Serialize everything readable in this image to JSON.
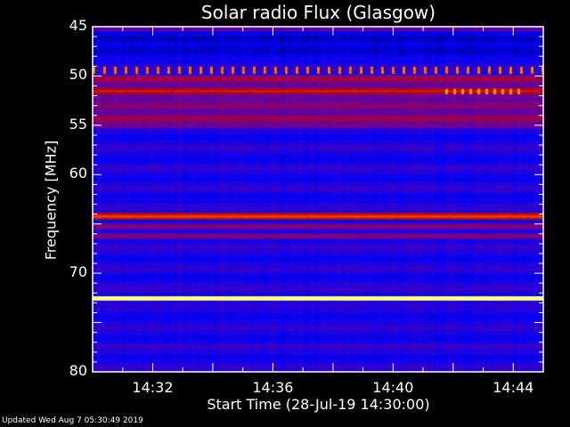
{
  "chart_data": {
    "type": "heatmap",
    "title": "Solar radio Flux (Glasgow)",
    "xlabel": "Start Time (28-Jul-19 14:30:00)",
    "ylabel": "Frequency [MHz]",
    "xlim": [
      "14:30",
      "14:45"
    ],
    "ylim": [
      80,
      45
    ],
    "y_ticks": [
      45,
      50,
      55,
      60,
      70,
      80
    ],
    "x_ticks": [
      "14:32",
      "14:36",
      "14:40",
      "14:44"
    ],
    "colormap": [
      "#000000",
      "#0000ff",
      "#800080",
      "#c00000",
      "#ff8000",
      "#ffff00",
      "#ffffff"
    ],
    "bands_mhz": [
      {
        "freq": 49.4,
        "level": 0.6,
        "pattern": "periodic"
      },
      {
        "freq": 50.3,
        "level": 0.45
      },
      {
        "freq": 51.5,
        "level": 0.55
      },
      {
        "freq": 53.0,
        "level": 0.4
      },
      {
        "freq": 54.3,
        "level": 0.45
      },
      {
        "freq": 64.2,
        "level": 0.6
      },
      {
        "freq": 65.2,
        "level": 0.38
      },
      {
        "freq": 66.2,
        "level": 0.38
      },
      {
        "freq": 72.5,
        "level": 0.95
      }
    ]
  },
  "footer": {
    "updated": "Updated Wed Aug  7 05:30:49 2019"
  }
}
